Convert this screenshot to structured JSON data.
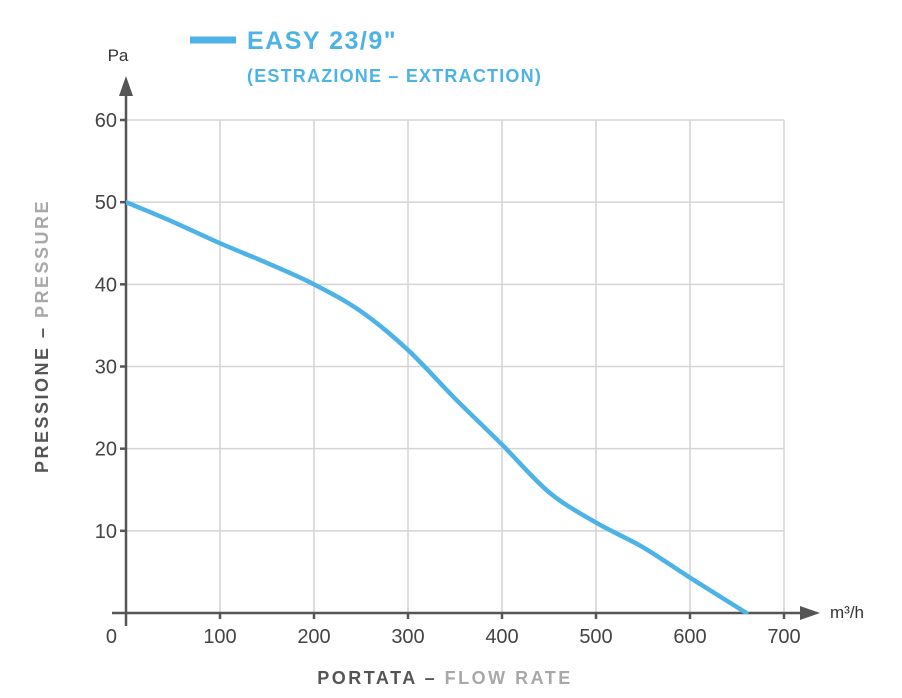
{
  "chart_data": {
    "type": "line",
    "title": "EASY 23/9\"",
    "subtitle": "(ESTRAZIONE – EXTRACTION)",
    "xlabel": {
      "primary": "PORTATA",
      "separator": " – ",
      "secondary": "FLOW RATE"
    },
    "ylabel": {
      "primary": "PRESSIONE",
      "separator": " – ",
      "secondary": "PRESSURE"
    },
    "x_unit": "m³/h",
    "y_unit": "Pa",
    "xlim": [
      0,
      700
    ],
    "ylim": [
      0,
      60
    ],
    "origin_label": "0",
    "x_ticks": [
      100,
      200,
      300,
      400,
      500,
      600,
      700
    ],
    "y_ticks": [
      10,
      20,
      30,
      40,
      50,
      60
    ],
    "grid": true,
    "legend_position": "top",
    "series": [
      {
        "name": "EASY 23/9\"",
        "color": "#4DB3E6",
        "x": [
          0,
          50,
          100,
          150,
          200,
          250,
          300,
          350,
          400,
          450,
          500,
          550,
          600,
          660
        ],
        "y": [
          50,
          47.6,
          45,
          42.6,
          40,
          36.7,
          32,
          26.1,
          20.5,
          14.7,
          11,
          8,
          4.3,
          0
        ]
      }
    ]
  },
  "colors": {
    "accent": "#4DB3E6",
    "axis_primary": "#555555",
    "axis_secondary": "#A8A8A8",
    "grid": "#D4D4D4"
  }
}
